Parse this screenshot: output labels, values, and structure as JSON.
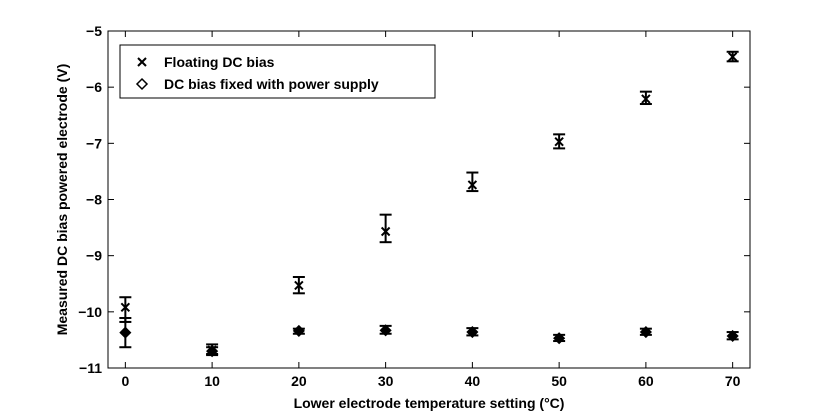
{
  "chart_data": {
    "type": "scatter",
    "xlabel": "Lower electrode temperature setting (°C)",
    "ylabel": "Measured DC bias powered electrode (V)",
    "xlim": [
      -2,
      72
    ],
    "ylim": [
      -11,
      -5
    ],
    "xticks": [
      0,
      10,
      20,
      30,
      40,
      50,
      60,
      70
    ],
    "yticks": [
      -11,
      -10,
      -9,
      -8,
      -7,
      -6,
      -5
    ],
    "xtick_labels": [
      "0",
      "10",
      "20",
      "30",
      "40",
      "50",
      "60",
      "70"
    ],
    "ytick_labels": [
      "−11",
      "−10",
      "−9",
      "−8",
      "−7",
      "−6",
      "−5"
    ],
    "legend_position": "top-left",
    "grid": false,
    "series": [
      {
        "name": "Floating DC bias",
        "marker": "x",
        "points": [
          {
            "x": 0,
            "y": -9.92,
            "err_low": -10.18,
            "err_high": -9.74
          },
          {
            "x": 10,
            "y": -10.68,
            "err_low": -10.75,
            "err_high": -10.58
          },
          {
            "x": 20,
            "y": -9.53,
            "err_low": -9.67,
            "err_high": -9.38
          },
          {
            "x": 30,
            "y": -8.57,
            "err_low": -8.76,
            "err_high": -8.27
          },
          {
            "x": 40,
            "y": -7.74,
            "err_low": -7.85,
            "err_high": -7.52
          },
          {
            "x": 50,
            "y": -6.97,
            "err_low": -7.09,
            "err_high": -6.84
          },
          {
            "x": 60,
            "y": -6.21,
            "err_low": -6.3,
            "err_high": -6.08
          },
          {
            "x": 70,
            "y": -5.46,
            "err_low": -5.54,
            "err_high": -5.37
          }
        ]
      },
      {
        "name": "DC bias fixed with power supply",
        "marker": "diamond",
        "points": [
          {
            "x": 0,
            "y": -10.37,
            "err_low": -10.63,
            "err_high": -10.11
          },
          {
            "x": 10,
            "y": -10.7,
            "err_low": -10.77,
            "err_high": -10.63
          },
          {
            "x": 20,
            "y": -10.34,
            "err_low": -10.39,
            "err_high": -10.3
          },
          {
            "x": 30,
            "y": -10.33,
            "err_low": -10.39,
            "err_high": -10.25
          },
          {
            "x": 40,
            "y": -10.36,
            "err_low": -10.42,
            "err_high": -10.29
          },
          {
            "x": 50,
            "y": -10.47,
            "err_low": -10.52,
            "err_high": -10.41
          },
          {
            "x": 60,
            "y": -10.36,
            "err_low": -10.41,
            "err_high": -10.3
          },
          {
            "x": 70,
            "y": -10.43,
            "err_low": -10.49,
            "err_high": -10.36
          }
        ]
      }
    ]
  }
}
